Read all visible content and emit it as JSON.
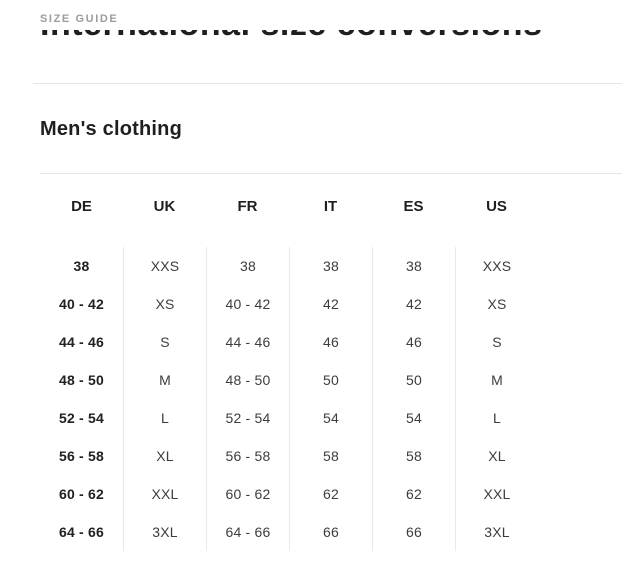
{
  "page": {
    "eyebrow": "SIZE GUIDE",
    "main_heading": "International size conversions",
    "section_heading": "Men's clothing"
  },
  "table": {
    "headers": [
      "DE",
      "UK",
      "FR",
      "IT",
      "ES",
      "US"
    ],
    "rows": [
      [
        "38",
        "XXS",
        "38",
        "38",
        "38",
        "XXS"
      ],
      [
        "40 - 42",
        "XS",
        "40 - 42",
        "42",
        "42",
        "XS"
      ],
      [
        "44 - 46",
        "S",
        "44 - 46",
        "46",
        "46",
        "S"
      ],
      [
        "48 - 50",
        "M",
        "48 - 50",
        "50",
        "50",
        "M"
      ],
      [
        "52 - 54",
        "L",
        "52 - 54",
        "54",
        "54",
        "L"
      ],
      [
        "56 - 58",
        "XL",
        "56 - 58",
        "58",
        "58",
        "XL"
      ],
      [
        "60 - 62",
        "XXL",
        "60 - 62",
        "62",
        "62",
        "XXL"
      ],
      [
        "64 - 66",
        "3XL",
        "64 - 66",
        "66",
        "66",
        "3XL"
      ]
    ]
  },
  "colors": {
    "text_primary": "#1f1f1f",
    "text_secondary": "#3d3d3d",
    "text_muted": "#9c9c9c",
    "divider": "#e8e8e8"
  }
}
